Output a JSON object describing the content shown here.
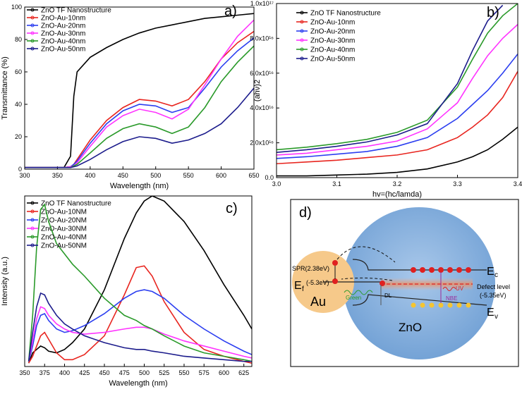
{
  "chart_data": [
    {
      "type": "line",
      "label": "a)",
      "x_label": "Wavelength (nm)",
      "y_label": "Transmittance (%)",
      "x": [
        300,
        325,
        350,
        360,
        370,
        375,
        380,
        400,
        425,
        450,
        475,
        500,
        525,
        550,
        575,
        600,
        625,
        650
      ],
      "xlim": [
        300,
        650
      ],
      "xticks": [
        300,
        350,
        400,
        450,
        500,
        550,
        600,
        650
      ],
      "ylim": [
        0,
        100
      ],
      "yticks": [
        0,
        20,
        40,
        60,
        80,
        100
      ],
      "series": [
        {
          "name": "ZnO TF Nanostructure",
          "color": "#000000",
          "values": [
            1,
            1,
            1,
            1,
            8,
            45,
            60,
            69,
            75,
            80,
            84,
            87,
            89,
            91,
            93,
            94,
            95,
            96
          ]
        },
        {
          "name": "ZnO-Au-10nm",
          "color": "#e8251f",
          "values": [
            1,
            1,
            1,
            1,
            1.5,
            3,
            6,
            18,
            30,
            38,
            43,
            42,
            39,
            43,
            54,
            68,
            78,
            85
          ]
        },
        {
          "name": "ZnO-Au-20nm",
          "color": "#2b3ef0",
          "values": [
            1,
            1,
            1,
            1,
            1.5,
            3,
            5,
            16,
            28,
            36,
            40,
            39,
            35,
            38,
            50,
            63,
            73,
            81
          ]
        },
        {
          "name": "ZnO-Au-30nm",
          "color": "#ff33ff",
          "values": [
            1,
            1,
            1,
            1,
            1.5,
            2,
            4,
            14,
            26,
            33,
            37,
            35,
            31,
            37,
            52,
            68,
            82,
            92
          ]
        },
        {
          "name": "ZnO-Au-40nm",
          "color": "#2a9a2a",
          "values": [
            1,
            1,
            1,
            1,
            1,
            2,
            3,
            10,
            19,
            25,
            28,
            26,
            22,
            26,
            38,
            54,
            66,
            76
          ]
        },
        {
          "name": "ZnO-Au-50nm",
          "color": "#1c1c8c",
          "values": [
            1,
            1,
            1,
            1,
            1,
            1.5,
            2,
            6,
            12,
            17,
            20,
            19,
            16,
            18,
            22,
            28,
            38,
            50
          ]
        }
      ]
    },
    {
      "type": "line",
      "label": "b)",
      "x_label": "hv=(hc/lamda)",
      "y_label": "(ahν)2",
      "x": [
        3.0,
        3.05,
        3.1,
        3.15,
        3.2,
        3.25,
        3.3,
        3.325,
        3.35,
        3.375,
        3.4
      ],
      "xlim": [
        3.0,
        3.4
      ],
      "xticks": [
        {
          "value": 3.0,
          "label": "3.0"
        },
        3.1,
        3.2,
        3.3,
        3.4
      ],
      "ylim": [
        0,
        1e+17
      ],
      "yticks": [
        {
          "value": 0,
          "label": "0.0"
        },
        {
          "value": 2e+16,
          "label": "2.0x10¹⁶"
        },
        {
          "value": 4e+16,
          "label": "4.0x10¹⁶"
        },
        {
          "value": 6e+16,
          "label": "6.0x10¹⁶"
        },
        {
          "value": 8e+16,
          "label": "8.0x10¹⁶"
        },
        {
          "value": 1e+17,
          "label": "1.0x10¹⁷"
        }
      ],
      "series": [
        {
          "name": "ZnO TF Nanostructure",
          "color": "#000000",
          "values": [
            1000000000000000.0,
            1000000000000000.0,
            1500000000000000.0,
            2000000000000000.0,
            3000000000000000.0,
            5000000000000000.0,
            9000000000000000.0,
            1.2e+16,
            1.6e+16,
            2.2e+16,
            2.9e+16
          ]
        },
        {
          "name": "ZnO-Au-10nm",
          "color": "#e8251f",
          "values": [
            8000000000000000.0,
            9000000000000000.0,
            1e+16,
            1.15e+16,
            1.3e+16,
            1.6e+16,
            2.3e+16,
            2.9e+16,
            3.6e+16,
            4.6e+16,
            6.1e+16
          ]
        },
        {
          "name": "ZnO-Au-20nm",
          "color": "#2b3ef0",
          "values": [
            1.1e+16,
            1.2e+16,
            1.35e+16,
            1.5e+16,
            1.8e+16,
            2.3e+16,
            3.4e+16,
            4.2e+16,
            5e+16,
            6e+16,
            7.1e+16
          ]
        },
        {
          "name": "ZnO-Au-30nm",
          "color": "#ff33ff",
          "values": [
            1.3e+16,
            1.4e+16,
            1.6e+16,
            1.8e+16,
            2.1e+16,
            2.8e+16,
            4.3e+16,
            5.7e+16,
            7e+16,
            8e+16,
            8.8e+16
          ]
        },
        {
          "name": "ZnO-Au-40nm",
          "color": "#2a9a2a",
          "values": [
            1.6e+16,
            1.75e+16,
            1.95e+16,
            2.2e+16,
            2.6e+16,
            3.3e+16,
            5.2e+16,
            6.8e+16,
            8.3e+16,
            9.3e+16,
            1e+17
          ]
        },
        {
          "name": "ZnO-Au-50nm",
          "color": "#1c1c8c",
          "values": [
            1.45e+16,
            1.6e+16,
            1.8e+16,
            2.05e+16,
            2.45e+16,
            3.1e+16,
            5.4e+16,
            7.3e+16,
            9e+16,
            9.9e+16,
            null
          ]
        }
      ]
    },
    {
      "type": "line",
      "label": "c)",
      "x_label": "Wavelength (nm)",
      "y_label": "Intensity (a.u.)",
      "x": [
        355,
        360,
        365,
        370,
        375,
        380,
        390,
        400,
        410,
        425,
        450,
        475,
        490,
        500,
        510,
        525,
        550,
        575,
        600,
        625,
        635
      ],
      "xlim": [
        350,
        635
      ],
      "xticks": [
        350,
        375,
        400,
        425,
        450,
        475,
        500,
        525,
        550,
        575,
        600,
        625
      ],
      "ylim": [
        0,
        100
      ],
      "series": [
        {
          "name": "ZnO TF Nanostructure",
          "color": "#000000",
          "values": [
            2,
            8,
            10,
            12,
            11,
            9,
            8,
            10,
            14,
            22,
            45,
            75,
            90,
            97,
            100,
            97,
            85,
            68,
            48,
            30,
            22
          ]
        },
        {
          "name": "ZnO-Au-10NM",
          "color": "#e8251f",
          "values": [
            2,
            6,
            12,
            18,
            20,
            16,
            8,
            4,
            4,
            7,
            18,
            42,
            58,
            59,
            53,
            38,
            20,
            10,
            6,
            3,
            2
          ]
        },
        {
          "name": "ZnO-Au-20NM",
          "color": "#2b3ef0",
          "values": [
            3,
            12,
            24,
            30,
            31,
            27,
            22,
            20,
            21,
            24,
            31,
            40,
            44,
            45,
            44,
            40,
            30,
            22,
            15,
            9,
            7
          ]
        },
        {
          "name": "ZnO-Au-30NM",
          "color": "#ff33ff",
          "values": [
            3,
            15,
            28,
            35,
            34,
            30,
            25,
            22,
            20,
            19,
            20,
            22,
            23,
            23,
            22,
            19,
            15,
            12,
            9,
            6,
            5
          ]
        },
        {
          "name": "ZnO-Au-40NM",
          "color": "#2a9a2a",
          "values": [
            3,
            30,
            70,
            92,
            95,
            85,
            72,
            66,
            60,
            53,
            40,
            30,
            27,
            24,
            22,
            18,
            12,
            8,
            6,
            4,
            3
          ]
        },
        {
          "name": "ZnO-Au-50NM",
          "color": "#1c1c8c",
          "values": [
            3,
            20,
            35,
            43,
            42,
            37,
            30,
            25,
            22,
            18,
            14,
            11,
            10,
            10,
            9,
            8,
            6,
            5,
            4,
            3,
            3
          ]
        }
      ]
    }
  ],
  "diagram": {
    "label": "d)",
    "spr": "SPR(2.38eV)",
    "ef": {
      "main": "E",
      "sub": "f",
      "value": "(-5.3eV)"
    },
    "au": "Au",
    "green": "Green",
    "dl": "DL",
    "ec": {
      "main": "E",
      "sub": "c"
    },
    "ev": {
      "main": "E",
      "sub": "v"
    },
    "defect": [
      "Defect level",
      "(-5.35eV)"
    ],
    "uv": "UV",
    "nbe": "NBE",
    "zno": "ZnO"
  }
}
